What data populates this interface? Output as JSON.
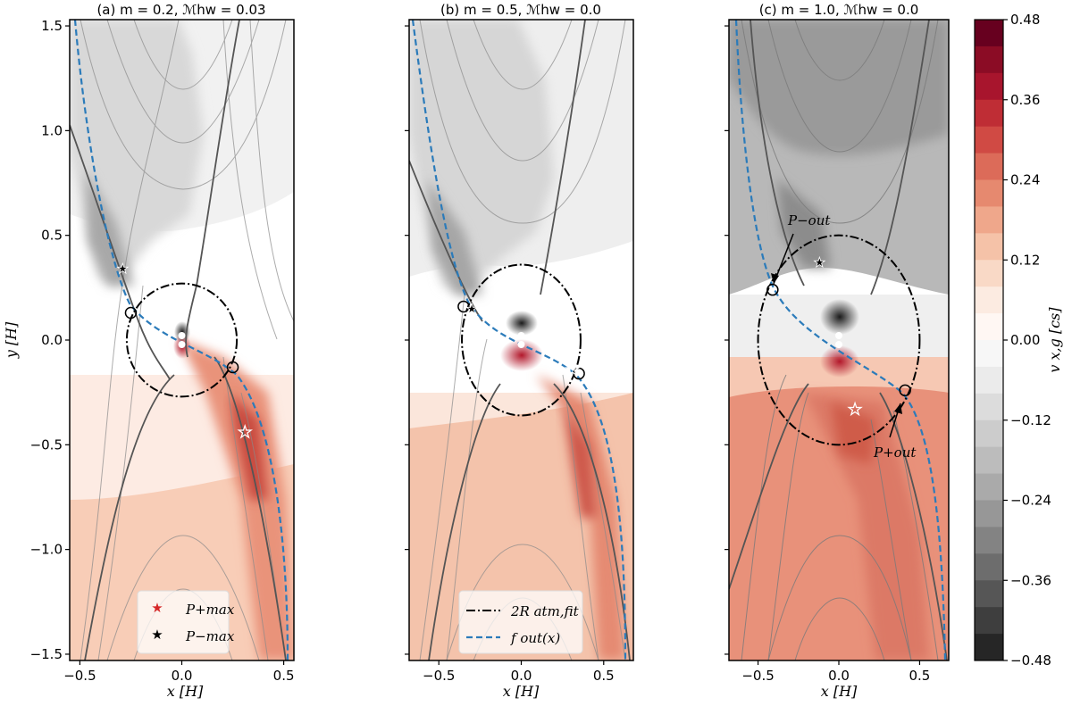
{
  "chart_data": {
    "type": "heatmap",
    "panels": [
      {
        "title": "(a) m = 0.2,  ℳhw = 0.03",
        "xlabel": "x [H]",
        "ylabel": "y [H]",
        "xlim": [
          -0.55,
          0.55
        ],
        "ylim": [
          -1.53,
          1.53
        ],
        "xticks": [
          -0.5,
          0.0,
          0.5
        ],
        "xtick_labels": [
          "−0.5",
          "0.0",
          "0.5"
        ],
        "yticks": [
          -1.5,
          -1.0,
          -0.5,
          0.0,
          0.5,
          1.0,
          1.5
        ],
        "ytick_labels": [
          "−1.5",
          "−1.0",
          "−0.5",
          "0.0",
          "0.5",
          "1.0",
          "1.5"
        ],
        "circle_radius": 0.27,
        "P_max_plus": [
          0.31,
          -0.44
        ],
        "P_max_minus": [
          -0.29,
          0.34
        ],
        "crossings": [
          [
            -0.25,
            0.13
          ],
          [
            0.25,
            -0.13
          ]
        ],
        "legend": [
          "P+max",
          "P−max"
        ]
      },
      {
        "title": "(b) m = 0.5,  ℳhw = 0.0",
        "xlabel": "x [H]",
        "xlim": [
          -0.68,
          0.68
        ],
        "ylim": [
          -1.53,
          1.53
        ],
        "xticks": [
          -0.5,
          0.0,
          0.5
        ],
        "xtick_labels": [
          "−0.5",
          "0.0",
          "0.5"
        ],
        "circle_radius": 0.36,
        "P_max_plus": [
          0.31,
          -0.14
        ],
        "P_max_minus": [
          -0.3,
          0.15
        ],
        "crossings": [
          [
            -0.35,
            0.16
          ],
          [
            0.35,
            -0.16
          ]
        ],
        "legend": [
          "2R atm,fit",
          "f out(x)"
        ]
      },
      {
        "title": "(c) m = 1.0,  ℳhw = 0.0",
        "xlabel": "x [H]",
        "xlim": [
          -0.68,
          0.68
        ],
        "ylim": [
          -1.53,
          1.53
        ],
        "xticks": [
          -0.5,
          0.0,
          0.5
        ],
        "xtick_labels": [
          "−0.5",
          "0.0",
          "0.5"
        ],
        "circle_radius": 0.5,
        "P_max_plus": [
          0.1,
          -0.33
        ],
        "P_max_minus": [
          -0.12,
          0.37
        ],
        "crossings": [
          [
            -0.41,
            0.24
          ],
          [
            0.41,
            -0.24
          ]
        ],
        "annotations": [
          "P−out",
          "P+out"
        ]
      }
    ],
    "colorbar": {
      "label": "v x,g [cs]",
      "range": [
        -0.48,
        0.48
      ],
      "ticks": [
        0.48,
        0.36,
        0.24,
        0.12,
        0.0,
        -0.12,
        -0.24,
        -0.36,
        -0.48
      ],
      "tick_labels": [
        "0.48",
        "0.36",
        "0.24",
        "0.12",
        "0.00",
        "−0.12",
        "−0.24",
        "−0.36",
        "−0.48"
      ],
      "levels": 24,
      "colormap": "RdGy_r"
    }
  }
}
